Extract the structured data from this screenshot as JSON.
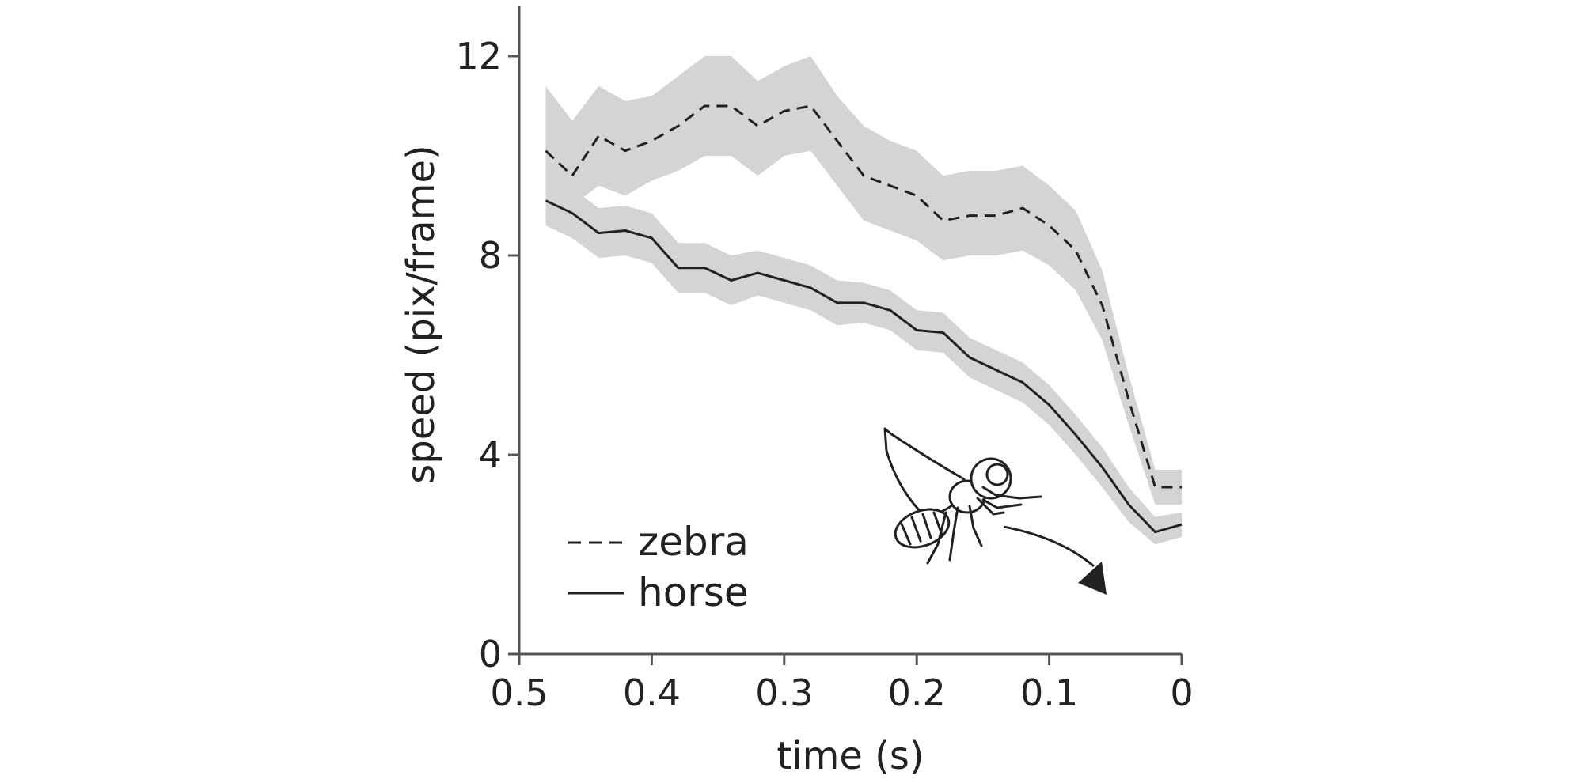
{
  "chart_data": {
    "type": "line",
    "title": "",
    "xlabel": "time (s)",
    "ylabel": "speed (pix/frame)",
    "xlim": [
      0.5,
      0
    ],
    "ylim": [
      0,
      13
    ],
    "x_reversed": true,
    "xticks": [
      0.5,
      0.4,
      0.3,
      0.2,
      0.1,
      0
    ],
    "xtick_labels": [
      "0.5",
      "0.4",
      "0.3",
      "0.2",
      "0.1",
      "0"
    ],
    "yticks": [
      0,
      4,
      8,
      12
    ],
    "ytick_labels": [
      "0",
      "4",
      "8",
      "12"
    ],
    "grid": false,
    "legend_position": "bottom-left",
    "x": [
      0.48,
      0.46,
      0.44,
      0.42,
      0.4,
      0.38,
      0.36,
      0.34,
      0.32,
      0.3,
      0.28,
      0.26,
      0.24,
      0.22,
      0.2,
      0.18,
      0.16,
      0.14,
      0.12,
      0.1,
      0.08,
      0.06,
      0.04,
      0.02,
      0.0
    ],
    "series": [
      {
        "name": "zebra",
        "style": "dashed",
        "color": "#222222",
        "band_color": "#d4d4d4",
        "values": [
          10.1,
          9.6,
          10.4,
          10.1,
          10.3,
          10.6,
          11.0,
          11.0,
          10.6,
          10.9,
          11.0,
          10.3,
          9.6,
          9.4,
          9.2,
          8.7,
          8.8,
          8.8,
          8.95,
          8.6,
          8.1,
          7.0,
          5.1,
          3.35,
          3.35
        ],
        "upper": [
          11.4,
          10.7,
          11.4,
          11.1,
          11.2,
          11.6,
          12.0,
          12.0,
          11.5,
          11.8,
          12.0,
          11.2,
          10.6,
          10.3,
          10.1,
          9.6,
          9.7,
          9.7,
          9.8,
          9.4,
          8.9,
          7.7,
          5.6,
          3.7,
          3.7
        ],
        "lower": [
          9.4,
          9.0,
          9.4,
          9.2,
          9.5,
          9.7,
          10.0,
          10.0,
          9.6,
          10.0,
          10.1,
          9.4,
          8.7,
          8.5,
          8.3,
          7.9,
          8.0,
          8.0,
          8.1,
          7.8,
          7.3,
          6.3,
          4.6,
          3.0,
          3.0
        ]
      },
      {
        "name": "horse",
        "style": "solid",
        "color": "#222222",
        "band_color": "#d4d4d4",
        "values": [
          9.1,
          8.85,
          8.45,
          8.5,
          8.35,
          7.75,
          7.75,
          7.5,
          7.65,
          7.5,
          7.35,
          7.05,
          7.05,
          6.9,
          6.5,
          6.45,
          5.95,
          5.7,
          5.45,
          5.0,
          4.4,
          3.75,
          3.0,
          2.45,
          2.6
        ],
        "upper": [
          9.6,
          9.35,
          8.95,
          9.0,
          8.85,
          8.25,
          8.25,
          8.0,
          8.1,
          7.95,
          7.8,
          7.5,
          7.45,
          7.3,
          6.9,
          6.85,
          6.35,
          6.1,
          5.85,
          5.4,
          4.8,
          4.15,
          3.35,
          2.75,
          2.85
        ],
        "lower": [
          8.6,
          8.35,
          7.95,
          8.0,
          7.85,
          7.25,
          7.25,
          7.0,
          7.2,
          7.05,
          6.9,
          6.6,
          6.65,
          6.5,
          6.1,
          6.05,
          5.55,
          5.3,
          5.05,
          4.6,
          4.0,
          3.35,
          2.65,
          2.2,
          2.35
        ]
      }
    ],
    "annotation_icons": [
      "fly-icon",
      "flight-arrow-icon"
    ]
  }
}
